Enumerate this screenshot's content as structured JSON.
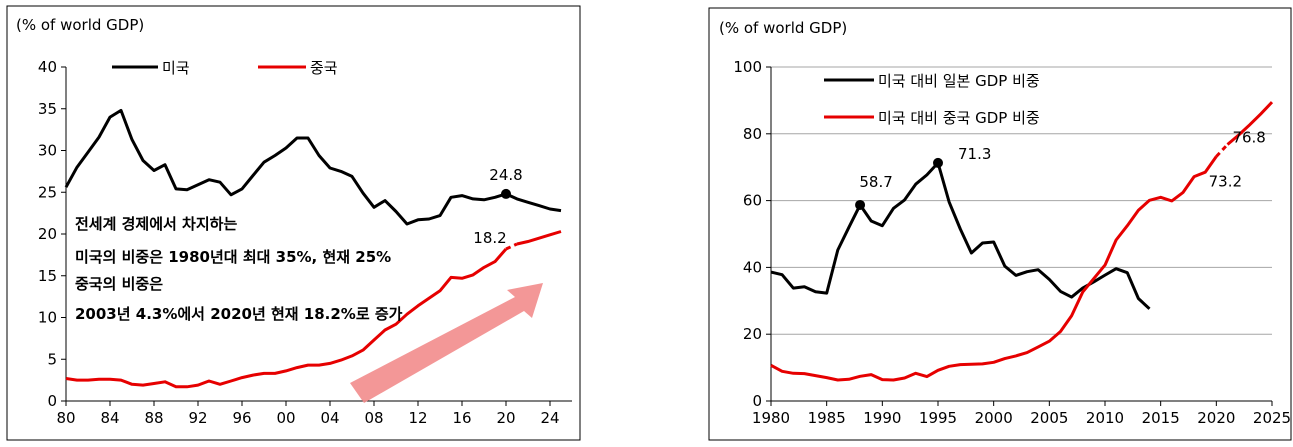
{
  "colors": {
    "black_series": "#000000",
    "red_series": "#e60000",
    "arrow": "#f28c8c",
    "grid": "#a6a6a6",
    "frame": "#000000"
  },
  "chart_data": [
    {
      "type": "line",
      "ylabel": "(% of world GDP)",
      "ylim": [
        0,
        40
      ],
      "yticks": [
        0,
        5,
        10,
        15,
        20,
        25,
        30,
        35,
        40
      ],
      "xlim": [
        1980,
        2026
      ],
      "xticks": [
        {
          "value": 1980,
          "label": "80"
        },
        {
          "value": 1984,
          "label": "84"
        },
        {
          "value": 1988,
          "label": "88"
        },
        {
          "value": 1992,
          "label": "92"
        },
        {
          "value": 1996,
          "label": "96"
        },
        {
          "value": 2000,
          "label": "00"
        },
        {
          "value": 2004,
          "label": "04"
        },
        {
          "value": 2008,
          "label": "08"
        },
        {
          "value": 2012,
          "label": "12"
        },
        {
          "value": 2016,
          "label": "16"
        },
        {
          "value": 2020,
          "label": "20"
        },
        {
          "value": 2024,
          "label": "24"
        }
      ],
      "legend": [
        "미국",
        "중국"
      ],
      "annotation": [
        "전세계 경제에서 차지하는",
        "미국의 비중은 1980년대 최대 35%, 현재 25%",
        "중국의 비중은",
        "2003년 4.3%에서 2020년 현재 18.2%로 증가"
      ],
      "series": [
        {
          "name": "미국",
          "x": [
            1980,
            1981,
            1982,
            1983,
            1984,
            1985,
            1986,
            1987,
            1988,
            1989,
            1990,
            1991,
            1992,
            1993,
            1994,
            1995,
            1996,
            1997,
            1998,
            1999,
            2000,
            2001,
            2002,
            2003,
            2004,
            2005,
            2006,
            2007,
            2008,
            2009,
            2010,
            2011,
            2012,
            2013,
            2014,
            2015,
            2016,
            2017,
            2018,
            2019,
            2020,
            2021,
            2022,
            2023,
            2024,
            2025
          ],
          "values": [
            25.6,
            28.0,
            29.8,
            31.6,
            34.0,
            34.8,
            31.3,
            28.8,
            27.6,
            28.3,
            25.4,
            25.3,
            25.9,
            26.5,
            26.2,
            24.7,
            25.4,
            27.0,
            28.6,
            29.4,
            30.3,
            31.5,
            31.5,
            29.4,
            27.9,
            27.5,
            26.9,
            24.9,
            23.2,
            24.0,
            22.7,
            21.2,
            21.7,
            21.8,
            22.2,
            24.4,
            24.6,
            24.2,
            24.1,
            24.4,
            24.8,
            24.2,
            23.8,
            23.4,
            23.0,
            22.8
          ],
          "style": "solid"
        },
        {
          "name": "중국",
          "x": [
            1980,
            1981,
            1982,
            1983,
            1984,
            1985,
            1986,
            1987,
            1988,
            1989,
            1990,
            1991,
            1992,
            1993,
            1994,
            1995,
            1996,
            1997,
            1998,
            1999,
            2000,
            2001,
            2002,
            2003,
            2004,
            2005,
            2006,
            2007,
            2008,
            2009,
            2010,
            2011,
            2012,
            2013,
            2014,
            2015,
            2016,
            2017,
            2018,
            2019,
            2020
          ],
          "values": [
            2.7,
            2.5,
            2.5,
            2.6,
            2.6,
            2.5,
            2.0,
            1.9,
            2.1,
            2.3,
            1.7,
            1.7,
            1.9,
            2.4,
            2.0,
            2.4,
            2.8,
            3.1,
            3.3,
            3.3,
            3.6,
            4.0,
            4.3,
            4.3,
            4.5,
            4.9,
            5.4,
            6.1,
            7.3,
            8.5,
            9.2,
            10.4,
            11.4,
            12.3,
            13.2,
            14.8,
            14.7,
            15.1,
            16.0,
            16.7,
            18.2
          ],
          "style": "solid"
        },
        {
          "name": "중국 전망",
          "x": [
            2020,
            2021,
            2022,
            2023,
            2024,
            2025
          ],
          "values": [
            18.2,
            18.8,
            19.1,
            19.5,
            19.9,
            20.3
          ],
          "style": "dashed-then-solid"
        }
      ],
      "point_labels": [
        {
          "x": 2020,
          "y": 24.8,
          "label": "24.8",
          "series": "미국"
        },
        {
          "x": 2020,
          "y": 18.2,
          "label": "18.2",
          "series": "중국"
        }
      ]
    },
    {
      "type": "line",
      "ylabel": "(% of world GDP)",
      "ylim": [
        0,
        100
      ],
      "yticks": [
        0,
        20,
        40,
        60,
        80,
        100
      ],
      "xlim": [
        1980,
        2025
      ],
      "xticks": [
        {
          "value": 1980,
          "label": "1980"
        },
        {
          "value": 1985,
          "label": "1985"
        },
        {
          "value": 1990,
          "label": "1990"
        },
        {
          "value": 1995,
          "label": "1995"
        },
        {
          "value": 2000,
          "label": "2000"
        },
        {
          "value": 2005,
          "label": "2005"
        },
        {
          "value": 2010,
          "label": "2010"
        },
        {
          "value": 2015,
          "label": "2015"
        },
        {
          "value": 2020,
          "label": "2020"
        },
        {
          "value": 2025,
          "label": "2025"
        }
      ],
      "legend": [
        "미국 대비 일본 GDP 비중",
        "미국 대비 중국 GDP 비중"
      ],
      "series": [
        {
          "name": "미국 대비 일본 GDP 비중",
          "x": [
            1980,
            1981,
            1982,
            1983,
            1984,
            1985,
            1986,
            1987,
            1988,
            1989,
            1990,
            1991,
            1992,
            1993,
            1994,
            1995,
            1996,
            1997,
            1998,
            1999,
            2000,
            2001,
            2002,
            2003,
            2004,
            2005,
            2006,
            2007,
            2008,
            2009,
            2010,
            2011,
            2012,
            2013,
            2014
          ],
          "values": [
            38.6,
            37.8,
            33.8,
            34.2,
            32.7,
            32.3,
            45.2,
            52.0,
            58.7,
            53.9,
            52.5,
            57.7,
            60.2,
            64.9,
            67.7,
            71.3,
            59.6,
            51.5,
            44.3,
            47.3,
            47.6,
            40.4,
            37.6,
            38.7,
            39.3,
            36.4,
            32.8,
            31.1,
            33.8,
            35.7,
            37.7,
            39.6,
            38.4,
            30.7,
            27.6
          ]
        },
        {
          "name": "미국 대비 중국 GDP 비중",
          "x": [
            1980,
            1981,
            1982,
            1983,
            1984,
            1985,
            1986,
            1987,
            1988,
            1989,
            1990,
            1991,
            1992,
            1993,
            1994,
            1995,
            1996,
            1997,
            1998,
            1999,
            2000,
            2001,
            2002,
            2003,
            2004,
            2005,
            2006,
            2007,
            2008,
            2009,
            2010,
            2011,
            2012,
            2013,
            2014,
            2015,
            2016,
            2017,
            2018,
            2019,
            2020
          ],
          "values": [
            10.7,
            8.9,
            8.3,
            8.2,
            7.6,
            7.0,
            6.3,
            6.5,
            7.4,
            7.9,
            6.4,
            6.3,
            6.9,
            8.3,
            7.3,
            9.2,
            10.4,
            10.9,
            11.0,
            11.1,
            11.6,
            12.7,
            13.5,
            14.5,
            16.2,
            17.9,
            20.8,
            25.5,
            32.6,
            36.7,
            40.7,
            48.2,
            52.5,
            57.1,
            60.1,
            61.0,
            59.9,
            62.4,
            67.2,
            68.5,
            73.2
          ]
        },
        {
          "name": "미국 대비 중국 GDP 비중 전망",
          "x": [
            2020,
            2021,
            2022,
            2023,
            2024,
            2025
          ],
          "values": [
            73.2,
            76.8,
            79.6,
            82.7,
            86.0,
            89.5
          ],
          "style": "dashed-then-solid"
        }
      ],
      "point_labels": [
        {
          "x": 1988,
          "y": 58.7,
          "label": "58.7",
          "series": "일본"
        },
        {
          "x": 1995,
          "y": 71.3,
          "label": "71.3",
          "series": "일본"
        },
        {
          "x": 2020,
          "y": 73.2,
          "label": "73.2",
          "series": "중국"
        },
        {
          "x": 2021,
          "y": 76.8,
          "label": "76.8",
          "series": "중국"
        }
      ]
    }
  ]
}
